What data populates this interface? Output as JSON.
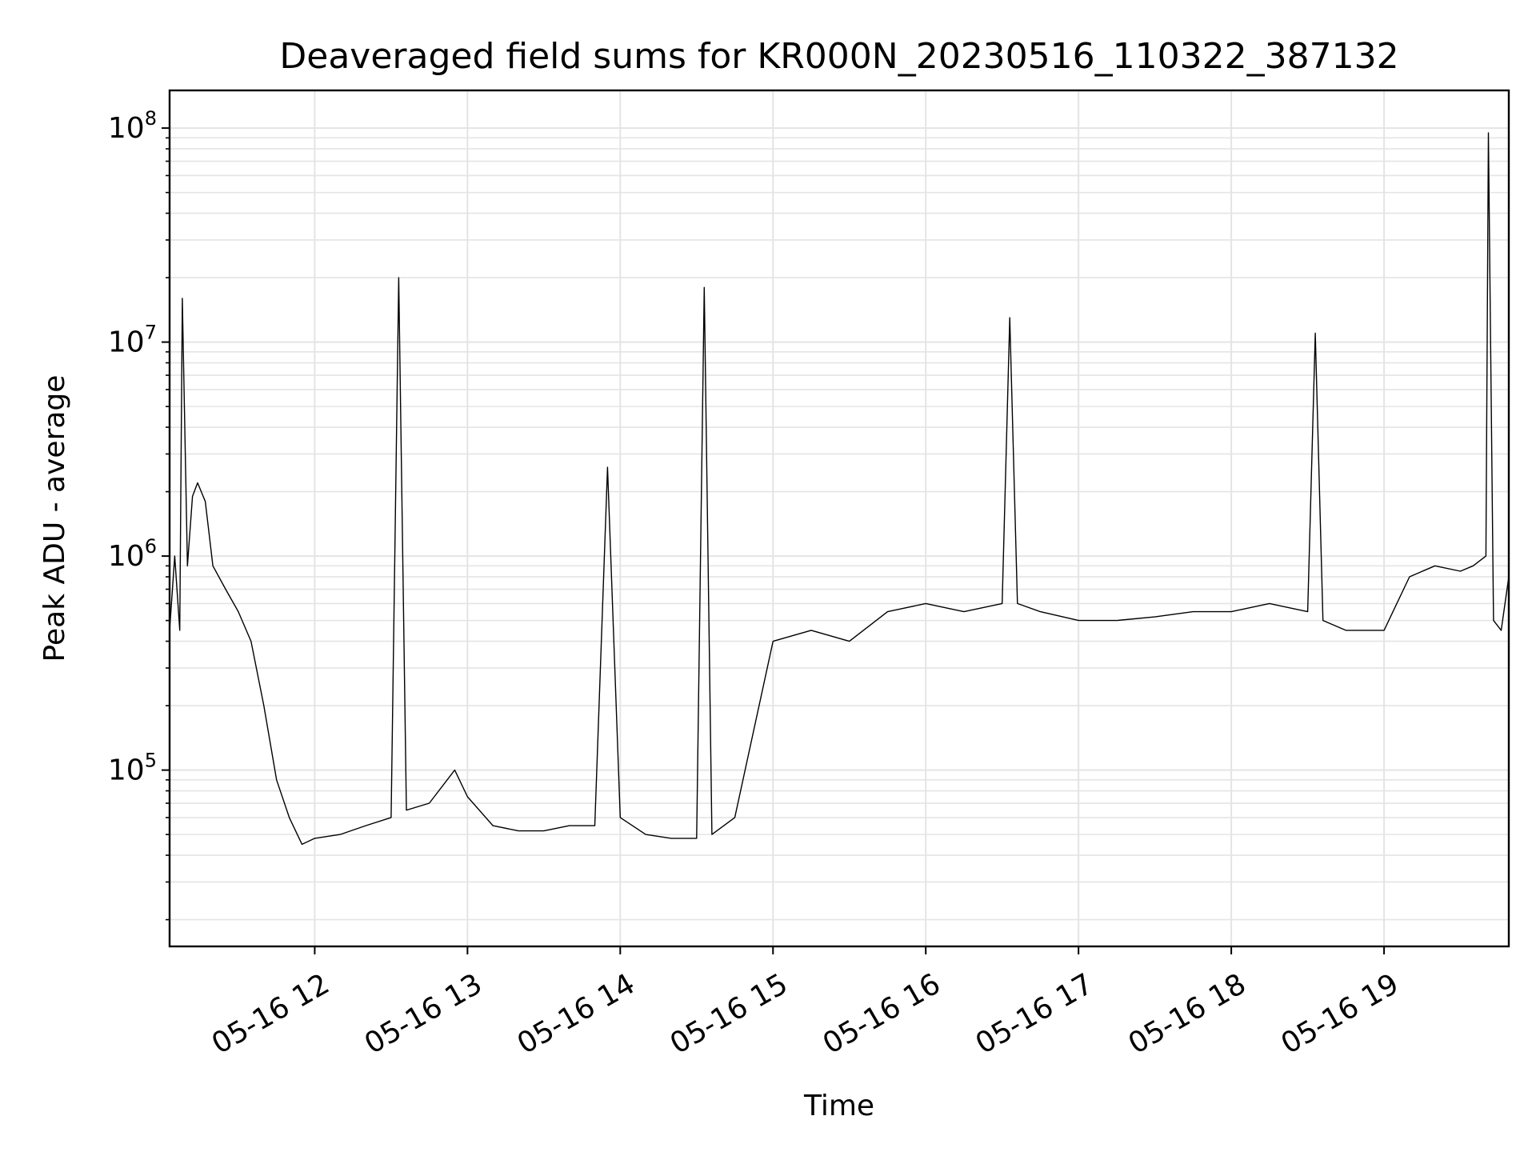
{
  "chart_data": {
    "type": "line",
    "title": "Deaveraged field sums for KR000N_20230516_110322_387132",
    "xlabel": "Time",
    "ylabel": "Peak ADU - average",
    "y_scale": "log",
    "ylim": [
      15000,
      150000000
    ],
    "xlim": [
      "05-16 11:03",
      "05-16 19:49"
    ],
    "grid": true,
    "line_color": "#000000",
    "x_ticks": [
      {
        "label": "05-16 12",
        "value": "05-16 12:00"
      },
      {
        "label": "05-16 13",
        "value": "05-16 13:00"
      },
      {
        "label": "05-16 14",
        "value": "05-16 14:00"
      },
      {
        "label": "05-16 15",
        "value": "05-16 15:00"
      },
      {
        "label": "05-16 16",
        "value": "05-16 16:00"
      },
      {
        "label": "05-16 17",
        "value": "05-16 17:00"
      },
      {
        "label": "05-16 18",
        "value": "05-16 18:00"
      },
      {
        "label": "05-16 19",
        "value": "05-16 19:00"
      }
    ],
    "y_ticks": [
      {
        "base": "10",
        "exp": "5",
        "value": 100000
      },
      {
        "base": "10",
        "exp": "6",
        "value": 1000000
      },
      {
        "base": "10",
        "exp": "7",
        "value": 10000000
      },
      {
        "base": "10",
        "exp": "8",
        "value": 100000000
      }
    ],
    "series": [
      {
        "x": [
          "05-16 11:03",
          "05-16 11:05",
          "05-16 11:07",
          "05-16 11:08",
          "05-16 11:10",
          "05-16 11:12",
          "05-16 11:14",
          "05-16 11:17",
          "05-16 11:20",
          "05-16 11:25",
          "05-16 11:30",
          "05-16 11:35",
          "05-16 11:40",
          "05-16 11:45",
          "05-16 11:50",
          "05-16 11:55",
          "05-16 12:00",
          "05-16 12:10",
          "05-16 12:20",
          "05-16 12:30",
          "05-16 12:33",
          "05-16 12:36",
          "05-16 12:45",
          "05-16 12:55",
          "05-16 13:00",
          "05-16 13:10",
          "05-16 13:20",
          "05-16 13:30",
          "05-16 13:40",
          "05-16 13:50",
          "05-16 13:55",
          "05-16 14:00",
          "05-16 14:10",
          "05-16 14:20",
          "05-16 14:30",
          "05-16 14:33",
          "05-16 14:36",
          "05-16 14:45",
          "05-16 15:00",
          "05-16 15:15",
          "05-16 15:30",
          "05-16 15:45",
          "05-16 16:00",
          "05-16 16:15",
          "05-16 16:30",
          "05-16 16:33",
          "05-16 16:36",
          "05-16 16:45",
          "05-16 17:00",
          "05-16 17:15",
          "05-16 17:30",
          "05-16 17:45",
          "05-16 18:00",
          "05-16 18:15",
          "05-16 18:30",
          "05-16 18:33",
          "05-16 18:36",
          "05-16 18:45",
          "05-16 19:00",
          "05-16 19:10",
          "05-16 19:20",
          "05-16 19:30",
          "05-16 19:35",
          "05-16 19:40",
          "05-16 19:41",
          "05-16 19:43",
          "05-16 19:46",
          "05-16 19:49"
        ],
        "y": [
          450000,
          1000000,
          450000,
          16000000,
          900000,
          1900000,
          2200000,
          1800000,
          900000,
          700000,
          550000,
          400000,
          200000,
          90000,
          60000,
          45000,
          48000,
          50000,
          55000,
          60000,
          20000000,
          65000,
          70000,
          100000,
          75000,
          55000,
          52000,
          52000,
          55000,
          55000,
          2600000,
          60000,
          50000,
          48000,
          48000,
          18000000,
          50000,
          60000,
          400000,
          450000,
          400000,
          550000,
          600000,
          550000,
          600000,
          13000000,
          600000,
          550000,
          500000,
          500000,
          520000,
          550000,
          550000,
          600000,
          550000,
          11000000,
          500000,
          450000,
          450000,
          800000,
          900000,
          850000,
          900000,
          1000000,
          95000000,
          500000,
          450000,
          800000
        ]
      }
    ]
  }
}
